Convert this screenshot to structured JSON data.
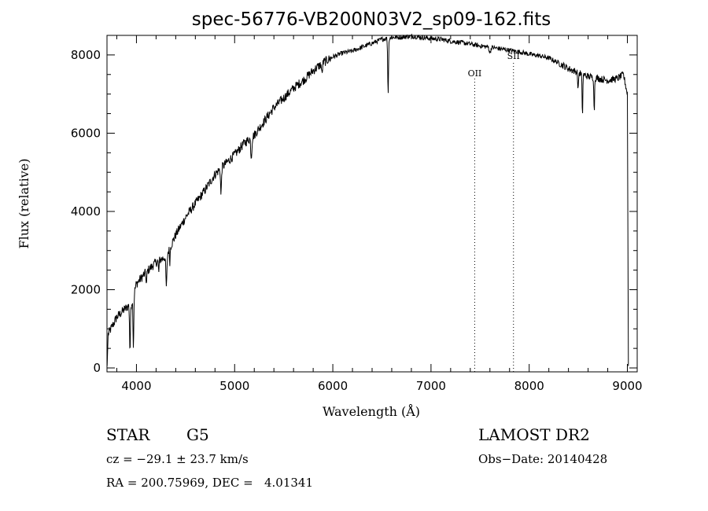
{
  "chart_data": {
    "type": "line",
    "title": "spec-56776-VB200N03V2_sp09-162.fits",
    "xlabel": "Wavelength (Å)",
    "ylabel": "Flux (relative)",
    "xlim": [
      3700,
      9100
    ],
    "ylim": [
      -100,
      8500
    ],
    "x_ticks": [
      4000,
      5000,
      6000,
      7000,
      8000,
      9000
    ],
    "y_ticks": [
      0,
      2000,
      4000,
      6000,
      8000
    ],
    "grid": false,
    "line_markers": [
      {
        "label": "OII",
        "x": 7445
      },
      {
        "label": "SII",
        "x": 7840
      }
    ],
    "spectrum": {
      "name": "",
      "continuum": [
        [
          3700,
          800
        ],
        [
          3800,
          1300
        ],
        [
          3900,
          1550
        ],
        [
          3950,
          1650
        ],
        [
          4000,
          2150
        ],
        [
          4100,
          2450
        ],
        [
          4200,
          2700
        ],
        [
          4300,
          2850
        ],
        [
          4400,
          3400
        ],
        [
          4500,
          3850
        ],
        [
          4600,
          4200
        ],
        [
          4700,
          4550
        ],
        [
          4800,
          4950
        ],
        [
          4900,
          5200
        ],
        [
          5000,
          5450
        ],
        [
          5100,
          5750
        ],
        [
          5200,
          5950
        ],
        [
          5300,
          6300
        ],
        [
          5400,
          6650
        ],
        [
          5500,
          6900
        ],
        [
          5600,
          7150
        ],
        [
          5700,
          7350
        ],
        [
          5800,
          7600
        ],
        [
          5900,
          7800
        ],
        [
          6000,
          7950
        ],
        [
          6100,
          8050
        ],
        [
          6200,
          8100
        ],
        [
          6300,
          8200
        ],
        [
          6400,
          8300
        ],
        [
          6500,
          8400
        ],
        [
          6600,
          8450
        ],
        [
          6700,
          8450
        ],
        [
          6800,
          8480
        ],
        [
          6900,
          8450
        ],
        [
          7000,
          8420
        ],
        [
          7100,
          8400
        ],
        [
          7200,
          8350
        ],
        [
          7300,
          8320
        ],
        [
          7400,
          8280
        ],
        [
          7500,
          8230
        ],
        [
          7600,
          8200
        ],
        [
          7700,
          8160
        ],
        [
          7800,
          8120
        ],
        [
          7900,
          8080
        ],
        [
          8000,
          8020
        ],
        [
          8100,
          7980
        ],
        [
          8200,
          7920
        ],
        [
          8300,
          7800
        ],
        [
          8400,
          7650
        ],
        [
          8500,
          7550
        ],
        [
          8600,
          7450
        ],
        [
          8700,
          7400
        ],
        [
          8800,
          7350
        ],
        [
          8900,
          7400
        ],
        [
          8960,
          7500
        ],
        [
          9000,
          7000
        ]
      ],
      "absorption_lines": [
        {
          "x": 3934,
          "depth": 1200,
          "width": 6
        },
        {
          "x": 3969,
          "depth": 1300,
          "width": 6
        },
        {
          "x": 4102,
          "depth": 350,
          "width": 5
        },
        {
          "x": 4227,
          "depth": 300,
          "width": 5
        },
        {
          "x": 4305,
          "depth": 800,
          "width": 8
        },
        {
          "x": 4340,
          "depth": 350,
          "width": 5
        },
        {
          "x": 4861,
          "depth": 700,
          "width": 6
        },
        {
          "x": 5170,
          "depth": 500,
          "width": 8
        },
        {
          "x": 5890,
          "depth": 300,
          "width": 6
        },
        {
          "x": 6563,
          "depth": 1400,
          "width": 6
        },
        {
          "x": 7600,
          "depth": 150,
          "width": 10
        },
        {
          "x": 8498,
          "depth": 500,
          "width": 5
        },
        {
          "x": 8542,
          "depth": 1100,
          "width": 5
        },
        {
          "x": 8662,
          "depth": 900,
          "width": 5
        }
      ],
      "edge_drops": [
        {
          "x": 3705,
          "value": 50
        },
        {
          "x": 9010,
          "value": 50
        }
      ]
    }
  },
  "info": {
    "object_type": "STAR",
    "subclass": "G5",
    "survey": "LAMOST DR2",
    "redshift": "cz = −29.1 ± 23.7 km/s",
    "obs_date": "Obs−Date: 20140428",
    "coords": "RA = 200.75969, DEC =   4.01341"
  }
}
